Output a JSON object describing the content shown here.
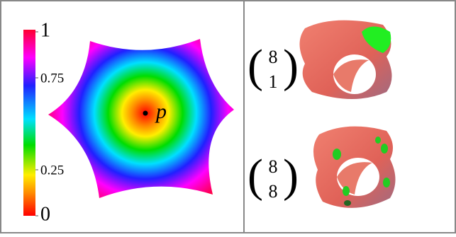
{
  "colorbar": {
    "lim": [
      0,
      1
    ],
    "ticks": [
      0,
      0.25,
      0.75,
      1
    ]
  },
  "point_label": "p",
  "binomials": [
    {
      "top": "8",
      "bottom": "1"
    },
    {
      "top": "8",
      "bottom": "8"
    }
  ]
}
